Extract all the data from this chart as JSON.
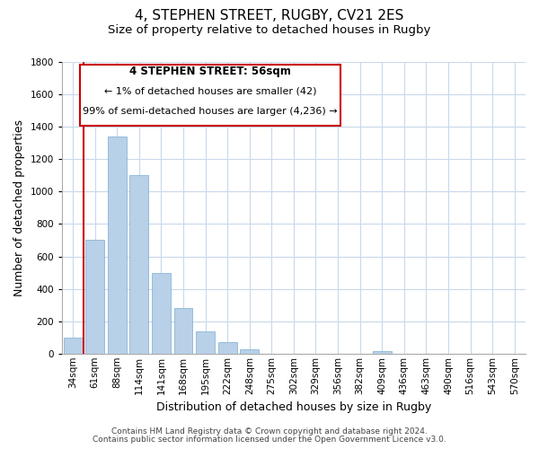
{
  "title": "4, STEPHEN STREET, RUGBY, CV21 2ES",
  "subtitle": "Size of property relative to detached houses in Rugby",
  "xlabel": "Distribution of detached houses by size in Rugby",
  "ylabel": "Number of detached properties",
  "categories": [
    "34sqm",
    "61sqm",
    "88sqm",
    "114sqm",
    "141sqm",
    "168sqm",
    "195sqm",
    "222sqm",
    "248sqm",
    "275sqm",
    "302sqm",
    "329sqm",
    "356sqm",
    "382sqm",
    "409sqm",
    "436sqm",
    "463sqm",
    "490sqm",
    "516sqm",
    "543sqm",
    "570sqm"
  ],
  "values": [
    100,
    700,
    1340,
    1100,
    500,
    280,
    140,
    70,
    25,
    0,
    0,
    0,
    0,
    0,
    15,
    0,
    0,
    0,
    0,
    0,
    0
  ],
  "bar_color": "#b8d0e8",
  "bar_edge_color": "#7aadd0",
  "highlight_bar_outline_color": "#cc0000",
  "vline_color": "#cc0000",
  "ylim": [
    0,
    1800
  ],
  "yticks": [
    0,
    200,
    400,
    600,
    800,
    1000,
    1200,
    1400,
    1600,
    1800
  ],
  "annotation_title": "4 STEPHEN STREET: 56sqm",
  "annotation_line1": "← 1% of detached houses are smaller (42)",
  "annotation_line2": "99% of semi-detached houses are larger (4,236) →",
  "annotation_box_color": "#ffffff",
  "annotation_box_edge_color": "#cc0000",
  "footer_line1": "Contains HM Land Registry data © Crown copyright and database right 2024.",
  "footer_line2": "Contains public sector information licensed under the Open Government Licence v3.0.",
  "background_color": "#ffffff",
  "grid_color": "#c8d8ec",
  "title_fontsize": 11,
  "subtitle_fontsize": 9.5,
  "axis_label_fontsize": 9,
  "tick_fontsize": 7.5,
  "footer_fontsize": 6.5,
  "annotation_title_fontsize": 8.5,
  "annotation_text_fontsize": 8
}
